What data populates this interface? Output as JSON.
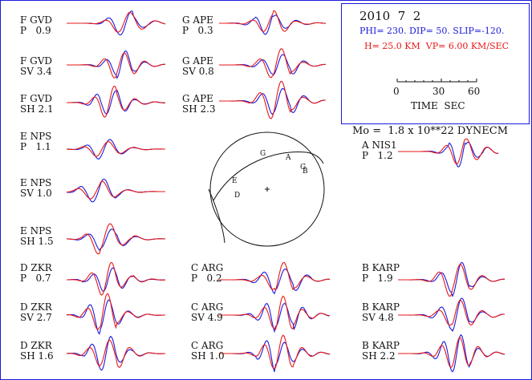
{
  "header": {
    "date": "2010  7  2",
    "mechanism": "PHI= 230. DIP= 50. SLIP=-120.",
    "depth_velocity": "H= 25.0 KM  VP= 6.00 KM/SEC",
    "time_ticks": [
      "0",
      "30",
      "60"
    ],
    "time_label": "TIME  SEC",
    "moment": "Mo =  1.8 x 10**22 DYNECM"
  },
  "colors": {
    "observed": "#1a1adc",
    "synthetic": "#e81818",
    "frame": "#1a1adc"
  },
  "stations": [
    {
      "id": "f-gvd-p",
      "station": "F GVD",
      "component": "P",
      "amplitude": "0.9"
    },
    {
      "id": "f-gvd-sv",
      "station": "F GVD",
      "component": "SV",
      "amplitude": "3.4"
    },
    {
      "id": "f-gvd-sh",
      "station": "F GVD",
      "component": "SH",
      "amplitude": "2.1"
    },
    {
      "id": "e-nps-p",
      "station": "E NPS",
      "component": "P",
      "amplitude": "1.1"
    },
    {
      "id": "e-nps-sv",
      "station": "E NPS",
      "component": "SV",
      "amplitude": "1.0"
    },
    {
      "id": "e-nps-sh",
      "station": "E NPS",
      "component": "SH",
      "amplitude": "1.5"
    },
    {
      "id": "d-zkr-p",
      "station": "D ZKR",
      "component": "P",
      "amplitude": "0.7"
    },
    {
      "id": "d-zkr-sv",
      "station": "D ZKR",
      "component": "SV",
      "amplitude": "2.7"
    },
    {
      "id": "d-zkr-sh",
      "station": "D ZKR",
      "component": "SH",
      "amplitude": "1.6"
    },
    {
      "id": "g-ape-p",
      "station": "G APE",
      "component": "P",
      "amplitude": "0.3"
    },
    {
      "id": "g-ape-sv",
      "station": "G APE",
      "component": "SV",
      "amplitude": "0.8"
    },
    {
      "id": "g-ape-sh",
      "station": "G APE",
      "component": "SH",
      "amplitude": "2.3"
    },
    {
      "id": "c-arg-p",
      "station": "C ARG",
      "component": "P",
      "amplitude": "0.2"
    },
    {
      "id": "c-arg-sv",
      "station": "C ARG",
      "component": "SV",
      "amplitude": "4.9"
    },
    {
      "id": "c-arg-sh",
      "station": "C ARG",
      "component": "SH",
      "amplitude": "1.0"
    },
    {
      "id": "a-nis1-p",
      "station": "A NIS1",
      "component": "P",
      "amplitude": "1.2"
    },
    {
      "id": "b-karp-p",
      "station": "B KARP",
      "component": "P",
      "amplitude": "1.9"
    },
    {
      "id": "b-karp-sv",
      "station": "B KARP",
      "component": "SV",
      "amplitude": "4.8"
    },
    {
      "id": "b-karp-sh",
      "station": "B KARP",
      "component": "SH",
      "amplitude": "2.2"
    }
  ],
  "focal_sphere": {
    "station_marks": [
      "G",
      "A",
      "G",
      "B",
      "E",
      "D"
    ]
  }
}
